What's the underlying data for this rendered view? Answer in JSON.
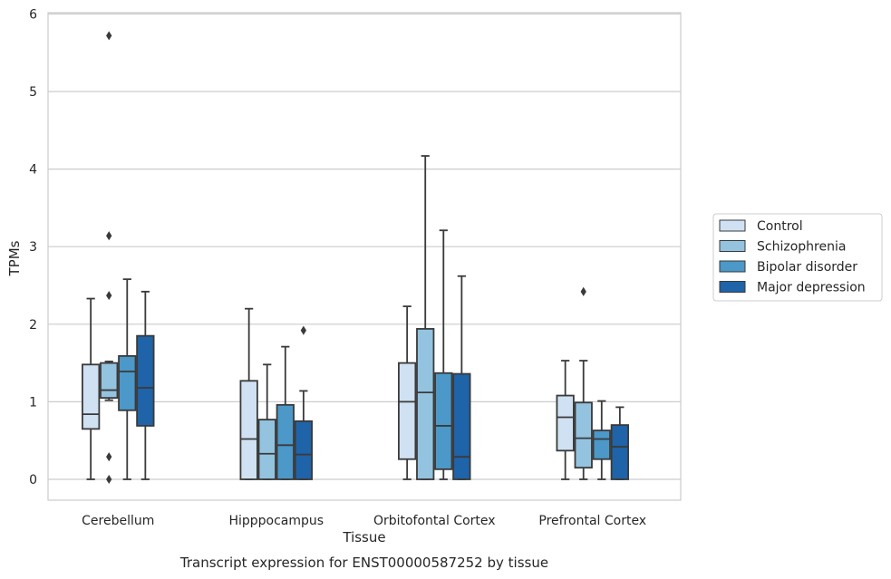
{
  "chart_data": {
    "type": "box",
    "xlabel": "Tissue",
    "ylabel": "TPMs",
    "caption": "Transcript expression for ENST00000587252 by tissue",
    "ylim": [
      -0.27,
      6.02
    ],
    "yticks": [
      "0",
      "1",
      "2",
      "3",
      "4",
      "5",
      "6"
    ],
    "grid": "horizontal",
    "legend_position": "right",
    "categories": [
      "Cerebellum",
      "Hipppocampus",
      "Orbitofontal Cortex",
      "Prefrontal Cortex"
    ],
    "series": [
      {
        "name": "Control",
        "color": "#cfe1f2",
        "boxes": [
          {
            "whisker_low": 0,
            "q1": 0.65,
            "median": 0.84,
            "q3": 1.48,
            "whisker_high": 2.33,
            "outliers": []
          },
          {
            "whisker_low": 0,
            "q1": 0,
            "median": 0.52,
            "q3": 1.27,
            "whisker_high": 2.2,
            "outliers": []
          },
          {
            "whisker_low": 0,
            "q1": 0.26,
            "median": 1.0,
            "q3": 1.5,
            "whisker_high": 2.23,
            "outliers": []
          },
          {
            "whisker_low": 0,
            "q1": 0.37,
            "median": 0.8,
            "q3": 1.08,
            "whisker_high": 1.53,
            "outliers": []
          }
        ]
      },
      {
        "name": "Schizophrenia",
        "color": "#93c3df",
        "boxes": [
          {
            "whisker_low": 1.02,
            "q1": 1.05,
            "median": 1.15,
            "q3": 1.5,
            "whisker_high": 1.52,
            "outliers": [
              5.72,
              3.14,
              2.37,
              0.29,
              0.0
            ]
          },
          {
            "whisker_low": 0,
            "q1": 0,
            "median": 0.33,
            "q3": 0.77,
            "whisker_high": 1.48,
            "outliers": []
          },
          {
            "whisker_low": 0,
            "q1": 0,
            "median": 1.12,
            "q3": 1.94,
            "whisker_high": 4.17,
            "outliers": []
          },
          {
            "whisker_low": 0,
            "q1": 0.15,
            "median": 0.53,
            "q3": 0.99,
            "whisker_high": 1.53,
            "outliers": [
              2.42
            ]
          }
        ]
      },
      {
        "name": "Bipolar disorder",
        "color": "#4b98c9",
        "boxes": [
          {
            "whisker_low": 0,
            "q1": 0.89,
            "median": 1.39,
            "q3": 1.59,
            "whisker_high": 2.58,
            "outliers": []
          },
          {
            "whisker_low": 0,
            "q1": 0,
            "median": 0.44,
            "q3": 0.96,
            "whisker_high": 1.71,
            "outliers": []
          },
          {
            "whisker_low": 0,
            "q1": 0.13,
            "median": 0.69,
            "q3": 1.37,
            "whisker_high": 3.21,
            "outliers": []
          },
          {
            "whisker_low": 0,
            "q1": 0.26,
            "median": 0.52,
            "q3": 0.63,
            "whisker_high": 1.01,
            "outliers": []
          }
        ]
      },
      {
        "name": "Major depression",
        "color": "#1f63a8",
        "boxes": [
          {
            "whisker_low": 0,
            "q1": 0.69,
            "median": 1.18,
            "q3": 1.85,
            "whisker_high": 2.42,
            "outliers": []
          },
          {
            "whisker_low": 0,
            "q1": 0,
            "median": 0.32,
            "q3": 0.75,
            "whisker_high": 1.14,
            "outliers": [
              1.92
            ]
          },
          {
            "whisker_low": 0,
            "q1": 0,
            "median": 0.29,
            "q3": 1.36,
            "whisker_high": 2.62,
            "outliers": []
          },
          {
            "whisker_low": 0,
            "q1": 0,
            "median": 0.42,
            "q3": 0.7,
            "whisker_high": 0.93,
            "outliers": []
          }
        ]
      }
    ]
  }
}
